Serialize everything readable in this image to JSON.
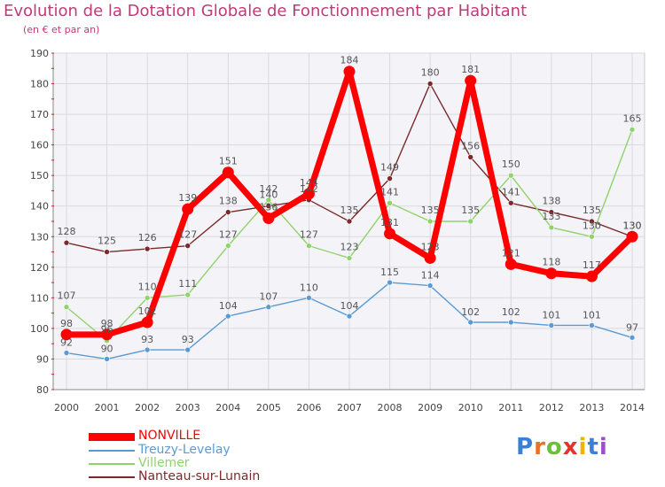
{
  "title": "Evolution de la Dotation Globale de Fonctionnement par Habitant",
  "subtitle": "(en € et par an)",
  "logo_text": "Proxiti",
  "chart_data": {
    "type": "line",
    "x": [
      "2000",
      "2001",
      "2002",
      "2003",
      "2004",
      "2005",
      "2006",
      "2007",
      "2008",
      "2009",
      "2010",
      "2011",
      "2012",
      "2013",
      "2014"
    ],
    "ylim": [
      80,
      190
    ],
    "yticks": [
      80,
      90,
      100,
      110,
      120,
      130,
      140,
      150,
      160,
      170,
      180,
      190
    ],
    "grid": true,
    "legend_position": "bottom-left",
    "series": [
      {
        "name": "NONVILLE",
        "color": "#ff0000",
        "values": [
          98,
          98,
          102,
          139,
          151,
          136,
          144,
          184,
          131,
          123,
          181,
          121,
          118,
          117,
          130
        ]
      },
      {
        "name": "Treuzy-Levelay",
        "color": "#5b9bd5",
        "values": [
          92,
          90,
          93,
          93,
          104,
          107,
          110,
          104,
          115,
          114,
          102,
          102,
          101,
          101,
          97
        ]
      },
      {
        "name": "Villemer",
        "color": "#8fd36b",
        "values": [
          107,
          96,
          110,
          111,
          127,
          142,
          127,
          123,
          141,
          135,
          135,
          150,
          133,
          130,
          165
        ]
      },
      {
        "name": "Nanteau-sur-Lunain",
        "color": "#7a2a2a",
        "values": [
          128,
          125,
          126,
          127,
          138,
          140,
          142,
          135,
          149,
          180,
          156,
          141,
          138,
          135,
          130
        ]
      }
    ]
  }
}
